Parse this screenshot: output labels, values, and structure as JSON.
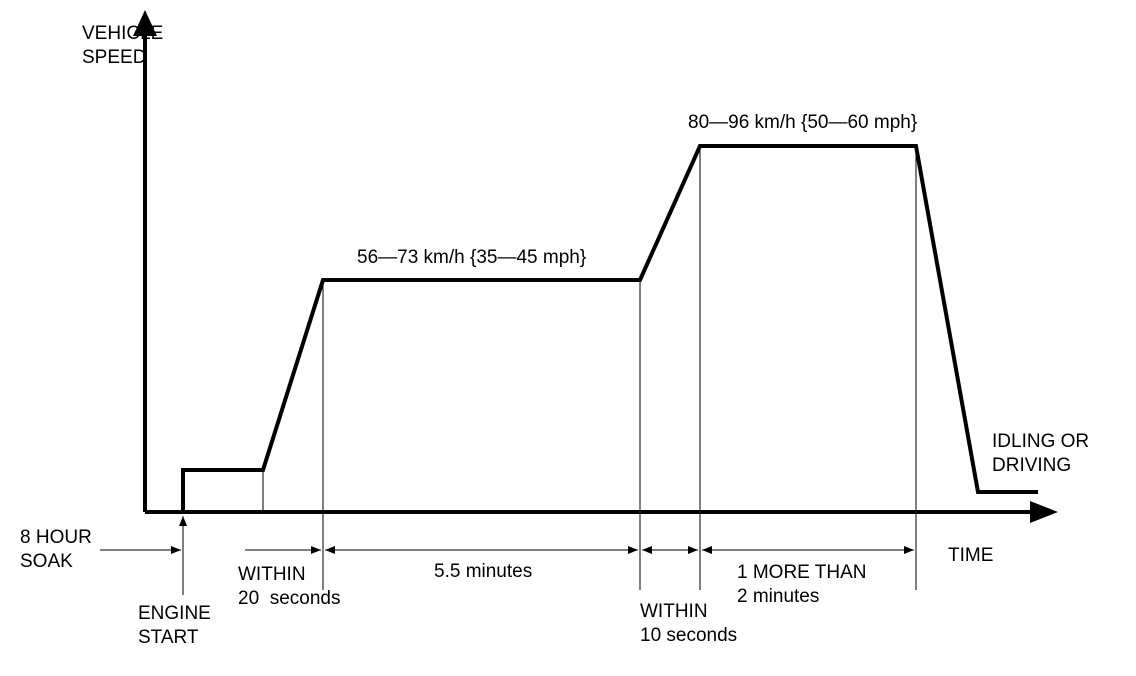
{
  "diagram": {
    "y_axis_label": [
      "VEHICLE",
      "SPEED"
    ],
    "x_axis_label": "TIME",
    "speed_low": "56—73 km/h {35—45 mph}",
    "speed_high": "80—96 km/h {50—60 mph}",
    "end_state": [
      "IDLING OR",
      "DRIVING"
    ],
    "soak": [
      "8 HOUR",
      "SOAK"
    ],
    "engine_start": [
      "ENGINE",
      "START"
    ],
    "within_first": [
      "WITHIN",
      "20  seconds"
    ],
    "cruise_low_duration": "5.5 minutes",
    "within_second": [
      "WITHIN",
      "10 seconds"
    ],
    "cruise_high_duration": [
      "1 MORE THAN",
      "2 minutes"
    ]
  }
}
